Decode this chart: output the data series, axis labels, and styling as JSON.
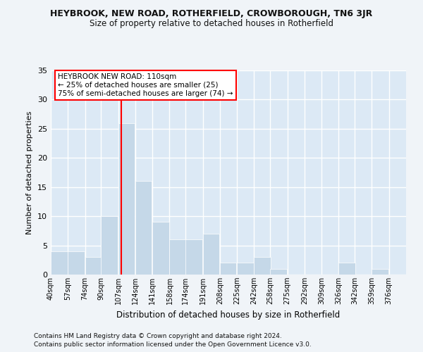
{
  "title": "HEYBROOK, NEW ROAD, ROTHERFIELD, CROWBOROUGH, TN6 3JR",
  "subtitle": "Size of property relative to detached houses in Rotherfield",
  "xlabel": "Distribution of detached houses by size in Rotherfield",
  "ylabel": "Number of detached properties",
  "footnote1": "Contains HM Land Registry data © Crown copyright and database right 2024.",
  "footnote2": "Contains public sector information licensed under the Open Government Licence v3.0.",
  "annotation_line1": "HEYBROOK NEW ROAD: 110sqm",
  "annotation_line2": "← 25% of detached houses are smaller (25)",
  "annotation_line3": "75% of semi-detached houses are larger (74) →",
  "bar_color": "#c5d8e8",
  "bar_edge_color": "#ffffff",
  "background_color": "#dce9f5",
  "grid_color": "#ffffff",
  "fig_background": "#f0f4f8",
  "red_line_x": 110,
  "categories": [
    "40sqm",
    "57sqm",
    "74sqm",
    "90sqm",
    "107sqm",
    "124sqm",
    "141sqm",
    "158sqm",
    "174sqm",
    "191sqm",
    "208sqm",
    "225sqm",
    "242sqm",
    "258sqm",
    "275sqm",
    "292sqm",
    "309sqm",
    "326sqm",
    "342sqm",
    "359sqm",
    "376sqm"
  ],
  "bin_edges": [
    40,
    57,
    74,
    90,
    107,
    124,
    141,
    158,
    174,
    191,
    208,
    225,
    242,
    258,
    275,
    292,
    309,
    326,
    342,
    359,
    376
  ],
  "values": [
    4,
    4,
    3,
    10,
    26,
    16,
    9,
    6,
    6,
    7,
    2,
    2,
    3,
    1,
    0,
    0,
    0,
    2,
    0,
    1,
    0
  ],
  "ylim": [
    0,
    35
  ],
  "yticks": [
    0,
    5,
    10,
    15,
    20,
    25,
    30,
    35
  ]
}
